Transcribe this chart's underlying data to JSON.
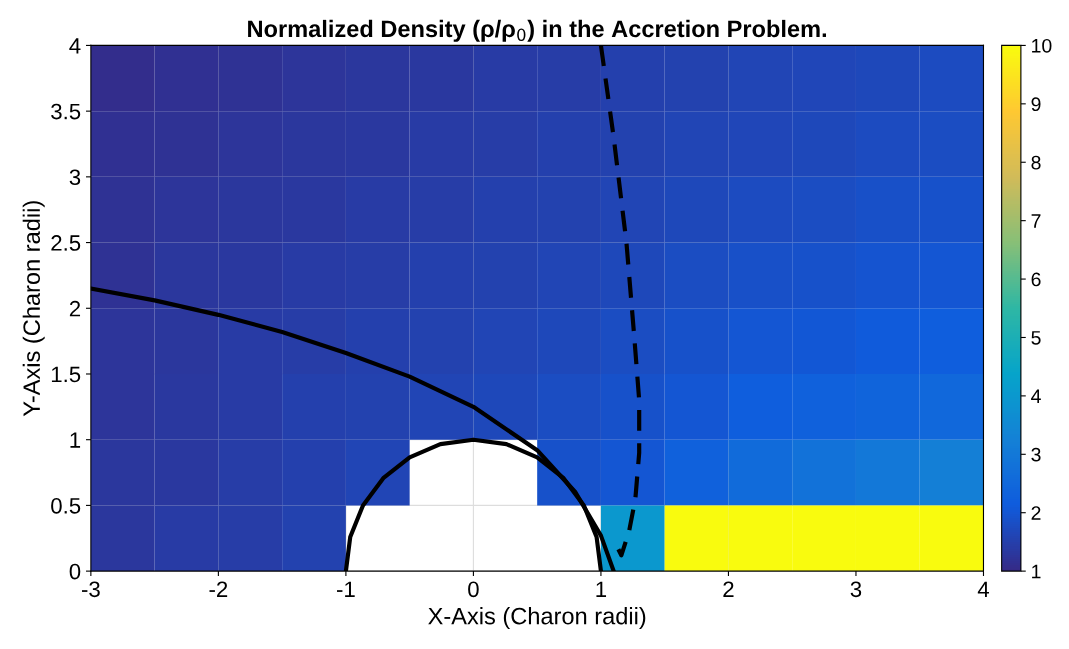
{
  "chart_data": {
    "type": "heatmap",
    "title": "Normalized Density (ρ/ρ$_{0}$) in the Accretion Problem.",
    "xlabel": "X-Axis (Charon radii)",
    "ylabel": "Y-Axis (Charon radii)",
    "x": [
      -2.75,
      -2.25,
      -1.75,
      -1.25,
      -0.75,
      -0.25,
      0.25,
      0.75,
      1.25,
      1.75,
      2.25,
      2.75,
      3.25,
      3.75
    ],
    "y": [
      3.75,
      3.25,
      2.75,
      2.25,
      1.75,
      1.25,
      0.75,
      0.25
    ],
    "cells": [
      [
        1.1,
        1.15,
        1.2,
        1.25,
        1.3,
        1.35,
        1.4,
        1.45,
        1.5,
        1.55,
        1.6,
        1.65,
        1.7,
        1.75
      ],
      [
        1.15,
        1.2,
        1.25,
        1.3,
        1.35,
        1.4,
        1.45,
        1.5,
        1.55,
        1.6,
        1.65,
        1.7,
        1.75,
        1.8
      ],
      [
        1.2,
        1.25,
        1.3,
        1.35,
        1.4,
        1.45,
        1.5,
        1.55,
        1.6,
        1.7,
        1.75,
        1.8,
        1.85,
        1.9
      ],
      [
        1.2,
        1.3,
        1.35,
        1.4,
        1.45,
        1.5,
        1.55,
        1.6,
        1.7,
        1.8,
        1.85,
        1.9,
        1.95,
        2.0
      ],
      [
        1.25,
        1.3,
        1.4,
        1.45,
        1.5,
        1.55,
        1.6,
        1.7,
        1.8,
        1.9,
        2.0,
        2.05,
        2.1,
        2.2
      ],
      [
        1.25,
        1.35,
        1.4,
        1.5,
        1.55,
        1.6,
        1.7,
        1.8,
        1.9,
        2.0,
        2.2,
        2.3,
        2.4,
        2.5
      ],
      [
        1.3,
        1.35,
        1.45,
        1.5,
        1.6,
        null,
        null,
        1.9,
        2.0,
        2.3,
        2.6,
        2.8,
        3.0,
        3.2
      ],
      [
        1.3,
        1.4,
        1.45,
        1.55,
        null,
        null,
        null,
        null,
        4.0,
        10,
        10,
        10,
        10,
        10
      ]
    ],
    "colors": [
      "#352a87",
      "#0f5cdd",
      "#1481d6",
      "#06a4ca",
      "#2eb7a4",
      "#87bf77",
      "#d1bb59",
      "#fec832",
      "#f9fb0e"
    ],
    "clim": [
      1,
      10
    ],
    "cticks": [
      1,
      2,
      3,
      4,
      5,
      6,
      7,
      8,
      9,
      10
    ],
    "xlim": [
      -3,
      4
    ],
    "xticks": [
      -3,
      -2,
      -1,
      0,
      1,
      2,
      3,
      4
    ],
    "ylim": [
      0,
      4
    ],
    "yticks": [
      0,
      0.5,
      1,
      1.5,
      2,
      2.5,
      3,
      3.5,
      4
    ],
    "grid": true,
    "series": [
      {
        "type": "line",
        "color": "#000000",
        "line_style": "solid",
        "x": [
          -3,
          -2.5,
          -2,
          -1.5,
          -1,
          -0.5,
          0,
          0.5,
          0.8,
          1.0,
          1.1
        ],
        "values": [
          2.15,
          2.06,
          1.95,
          1.82,
          1.66,
          1.48,
          1.25,
          0.92,
          0.6,
          0.27,
          0
        ]
      },
      {
        "type": "line",
        "color": "#000000",
        "line_style": "dashed",
        "x": [
          1.0,
          1.1,
          1.2,
          1.26,
          1.3,
          1.3,
          1.27,
          1.22,
          1.16,
          1.12
        ],
        "values": [
          4,
          3.3,
          2.5,
          1.8,
          1.3,
          0.9,
          0.55,
          0.3,
          0.12,
          0.2
        ]
      },
      {
        "type": "line",
        "color": "#000000",
        "line_style": "solid",
        "x": [
          1,
          0.966,
          0.866,
          0.707,
          0.5,
          0.259,
          0,
          -0.259,
          -0.5,
          -0.707,
          -0.866,
          -0.966,
          -1
        ],
        "values": [
          0,
          0.259,
          0.5,
          0.707,
          0.866,
          0.966,
          1,
          0.966,
          0.866,
          0.707,
          0.5,
          0.259,
          0
        ]
      }
    ]
  }
}
